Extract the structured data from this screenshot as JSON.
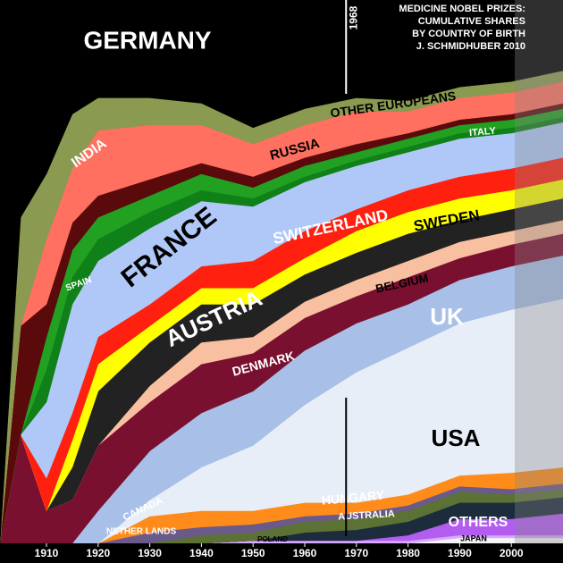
{
  "chart_data": {
    "type": "stacked-area",
    "title_lines": [
      "MEDICINE NOBEL PRIZES:",
      "CUMULATIVE SHARES",
      "BY COUNTRY OF BIRTH",
      "J. SCHMIDHUBER 2010"
    ],
    "x": [
      1901,
      1905,
      1910,
      1915,
      1920,
      1930,
      1940,
      1950,
      1960,
      1970,
      1980,
      1990,
      2000,
      2010
    ],
    "xlim": [
      1901,
      2010
    ],
    "xticks": [
      1910,
      1920,
      1930,
      1940,
      1950,
      1960,
      1970,
      1980,
      1990,
      2000
    ],
    "ylim": [
      0,
      100
    ],
    "marker": {
      "x": 1968,
      "label": "1968"
    },
    "series": [
      {
        "name": "JAPAN",
        "color": "#f4f4f4",
        "values": [
          0,
          0,
          0,
          0,
          0,
          0,
          0,
          0,
          0,
          0,
          0,
          1,
          1,
          1
        ]
      },
      {
        "name": "POLAND",
        "color": "#d9a8ff",
        "values": [
          0,
          0,
          0,
          0,
          0,
          0,
          0,
          0.5,
          0.5,
          0.5,
          0.5,
          0.5,
          0.5,
          0.5
        ]
      },
      {
        "name": "OTHERS",
        "color": "#b35cf0",
        "values": [
          0,
          0,
          0,
          0,
          0,
          0,
          0,
          0,
          0,
          0,
          1,
          3,
          3,
          4
        ]
      },
      {
        "name": "AUSTRALIA",
        "color": "#1c2c3c",
        "values": [
          0,
          0,
          0,
          0,
          0,
          0,
          0,
          0,
          1.5,
          2,
          2.5,
          3,
          3,
          3
        ]
      },
      {
        "name": "HUNGARY",
        "color": "#5c7234",
        "values": [
          0,
          0,
          0,
          0,
          0,
          0,
          1.5,
          1.5,
          2,
          2,
          2,
          2,
          1.5,
          1.5
        ]
      },
      {
        "name": "CANADA",
        "color": "#6a5a8a",
        "values": [
          0,
          0,
          0,
          0,
          0,
          2,
          1.5,
          1.5,
          1,
          1,
          1,
          1,
          1,
          1
        ]
      },
      {
        "name": "NETHER LANDS",
        "color": "#ff8c1a",
        "values": [
          0,
          0,
          0,
          0,
          0,
          3,
          3,
          2.5,
          2.5,
          2,
          2,
          2,
          3,
          3
        ]
      },
      {
        "name": "USA",
        "color": "#e8eef8",
        "values": [
          0,
          0,
          0,
          0,
          0,
          3,
          8,
          12,
          18,
          24,
          27,
          28,
          30,
          31
        ]
      },
      {
        "name": "UK",
        "color": "#a8c0e8",
        "values": [
          0,
          0,
          0,
          0,
          6,
          9,
          10,
          10,
          10,
          9,
          8,
          8,
          8,
          8
        ]
      },
      {
        "name": "DENMARK",
        "color": "#7a1030",
        "values": [
          0,
          20,
          6,
          8,
          12,
          9,
          9,
          7,
          6,
          5,
          5,
          4,
          4,
          4
        ]
      },
      {
        "name": "BELGIUM",
        "color": "#f8c0a0",
        "values": [
          0,
          0,
          0,
          0,
          0,
          3,
          4,
          3,
          3,
          3,
          3,
          3,
          2.5,
          2.5
        ]
      },
      {
        "name": "AUSTRIA",
        "color": "#222222",
        "values": [
          0,
          0,
          0,
          6,
          10,
          8,
          7,
          6,
          5,
          5,
          5,
          4,
          4,
          4
        ]
      },
      {
        "name": "SWEDEN",
        "color": "#ffff00",
        "values": [
          0,
          0,
          0,
          5,
          5,
          3,
          3,
          3,
          3,
          4,
          4,
          4,
          3.5,
          3.5
        ]
      },
      {
        "name": "SWITZERLAND",
        "color": "#ff2010",
        "values": [
          0,
          0,
          6,
          5,
          5,
          4,
          4,
          5,
          5,
          4,
          4,
          4,
          4,
          4
        ]
      },
      {
        "name": "FRANCE",
        "color": "#b0c8f8",
        "values": [
          0,
          0,
          14,
          20,
          14,
          14,
          12,
          10,
          9,
          8,
          7,
          7,
          6.5,
          6.5
        ]
      },
      {
        "name": "SPAIN",
        "color": "#108018",
        "values": [
          0,
          0,
          6,
          5,
          4,
          3,
          2,
          1.5,
          1,
          1,
          1,
          1,
          1,
          1
        ]
      },
      {
        "name": "ITALY",
        "color": "#22a022",
        "values": [
          0,
          0,
          6,
          5,
          4,
          3,
          3,
          2,
          2,
          1.5,
          1.5,
          1.5,
          1.5,
          1.5
        ]
      },
      {
        "name": "RUSSIA",
        "color": "#5a0a0a",
        "values": [
          0,
          20,
          6,
          5,
          4,
          3,
          2,
          2,
          1.5,
          1.5,
          1,
          1,
          1,
          1
        ]
      },
      {
        "name": "OTHER EUROPEANS",
        "color": "#ff7060",
        "values": [
          0,
          0,
          12,
          10,
          12,
          10,
          7,
          6,
          6,
          6,
          4,
          4,
          4,
          4
        ]
      },
      {
        "name": "INDIA",
        "color": "#8a9a50",
        "values": [
          0,
          20,
          12,
          10,
          6,
          5,
          4,
          3,
          3,
          2.5,
          2,
          2,
          2,
          2
        ]
      },
      {
        "name": "GERMANY",
        "color": "#000000",
        "values": [
          100,
          40,
          32,
          21,
          18,
          18,
          19,
          23.5,
          20,
          18,
          18.5,
          16,
          15,
          13
        ]
      }
    ]
  }
}
